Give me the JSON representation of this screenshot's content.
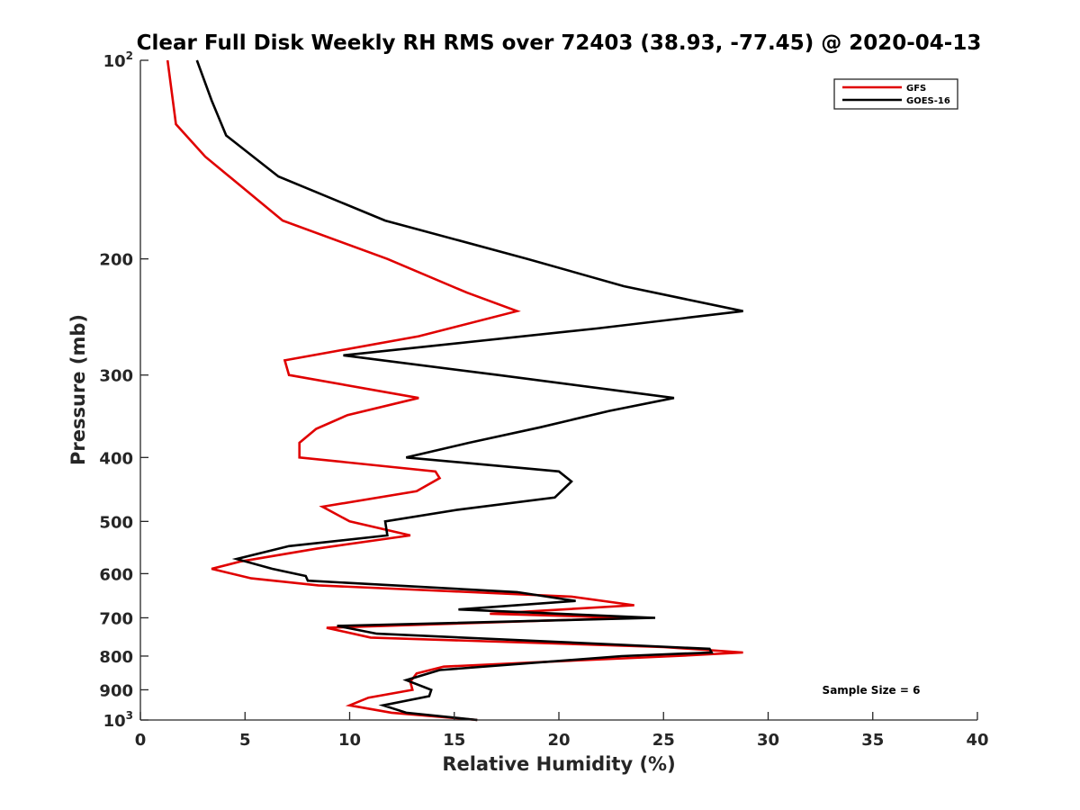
{
  "chart_data": {
    "type": "line",
    "title": "Clear Full Disk Weekly RH RMS over 72403 (38.93, -77.45) @ 2020-04-13",
    "xlabel": "Relative Humidity (%)",
    "ylabel": "Pressure (mb)",
    "xlim": [
      0,
      40
    ],
    "ylim": [
      100,
      1000
    ],
    "y_scale": "log",
    "y_reversed": true,
    "grid": false,
    "legend_position": "top-right",
    "x_ticks": [
      0,
      5,
      10,
      15,
      20,
      25,
      30,
      35,
      40
    ],
    "x_tick_labels": [
      "0",
      "5",
      "10",
      "15",
      "20",
      "25",
      "30",
      "35",
      "40"
    ],
    "y_ticks": [
      {
        "value": 100,
        "base": "10",
        "exp": "2"
      },
      {
        "value": 200,
        "base": "200",
        "exp": ""
      },
      {
        "value": 300,
        "base": "300",
        "exp": ""
      },
      {
        "value": 400,
        "base": "400",
        "exp": ""
      },
      {
        "value": 500,
        "base": "500",
        "exp": ""
      },
      {
        "value": 600,
        "base": "600",
        "exp": ""
      },
      {
        "value": 700,
        "base": "700",
        "exp": ""
      },
      {
        "value": 800,
        "base": "800",
        "exp": ""
      },
      {
        "value": 900,
        "base": "900",
        "exp": ""
      },
      {
        "value": 1000,
        "base": "10",
        "exp": "3"
      }
    ],
    "annotation": "Sample Size = 6",
    "series": [
      {
        "name": "GFS",
        "color": "#e00000",
        "points": [
          [
            1.3,
            100
          ],
          [
            1.7,
            125
          ],
          [
            3.1,
            140
          ],
          [
            6.8,
            175
          ],
          [
            11.8,
            200
          ],
          [
            15.6,
            225
          ],
          [
            18.0,
            240
          ],
          [
            13.3,
            262
          ],
          [
            6.9,
            285
          ],
          [
            7.1,
            300
          ],
          [
            13.3,
            325
          ],
          [
            9.9,
            345
          ],
          [
            8.4,
            362
          ],
          [
            7.6,
            380
          ],
          [
            7.6,
            400
          ],
          [
            14.1,
            420
          ],
          [
            14.3,
            430
          ],
          [
            13.2,
            450
          ],
          [
            8.7,
            475
          ],
          [
            10.0,
            500
          ],
          [
            12.9,
            525
          ],
          [
            8.4,
            550
          ],
          [
            4.8,
            575
          ],
          [
            3.4,
            590
          ],
          [
            5.3,
            610
          ],
          [
            8.5,
            625
          ],
          [
            20.6,
            650
          ],
          [
            23.6,
            670
          ],
          [
            16.7,
            690
          ],
          [
            23.4,
            700
          ],
          [
            8.9,
            725
          ],
          [
            11.0,
            750
          ],
          [
            25.0,
            775
          ],
          [
            28.8,
            790
          ],
          [
            25.5,
            800
          ],
          [
            19.8,
            815
          ],
          [
            14.5,
            830
          ],
          [
            13.2,
            850
          ],
          [
            12.9,
            875
          ],
          [
            13.0,
            900
          ],
          [
            10.9,
            925
          ],
          [
            10.0,
            950
          ],
          [
            12.0,
            975
          ],
          [
            16.1,
            1000
          ]
        ]
      },
      {
        "name": "GOES-16",
        "color": "#000000",
        "points": [
          [
            2.7,
            100
          ],
          [
            3.4,
            115
          ],
          [
            4.1,
            130
          ],
          [
            6.6,
            150
          ],
          [
            11.7,
            175
          ],
          [
            18.5,
            200
          ],
          [
            23.1,
            220
          ],
          [
            28.8,
            240
          ],
          [
            21.8,
            255
          ],
          [
            9.7,
            280
          ],
          [
            17.1,
            300
          ],
          [
            25.5,
            325
          ],
          [
            22.4,
            340
          ],
          [
            19.1,
            360
          ],
          [
            15.7,
            380
          ],
          [
            12.7,
            400
          ],
          [
            20.0,
            420
          ],
          [
            20.6,
            435
          ],
          [
            19.8,
            460
          ],
          [
            15.2,
            480
          ],
          [
            11.7,
            500
          ],
          [
            11.8,
            525
          ],
          [
            7.1,
            545
          ],
          [
            4.6,
            570
          ],
          [
            6.3,
            590
          ],
          [
            7.9,
            605
          ],
          [
            8.0,
            615
          ],
          [
            18.0,
            640
          ],
          [
            20.8,
            660
          ],
          [
            15.2,
            680
          ],
          [
            24.6,
            700
          ],
          [
            9.4,
            720
          ],
          [
            11.3,
            740
          ],
          [
            27.2,
            780
          ],
          [
            27.3,
            790
          ],
          [
            23.0,
            800
          ],
          [
            14.3,
            840
          ],
          [
            12.7,
            870
          ],
          [
            13.9,
            900
          ],
          [
            13.8,
            920
          ],
          [
            11.6,
            950
          ],
          [
            12.7,
            975
          ],
          [
            16.1,
            1000
          ]
        ]
      }
    ]
  }
}
